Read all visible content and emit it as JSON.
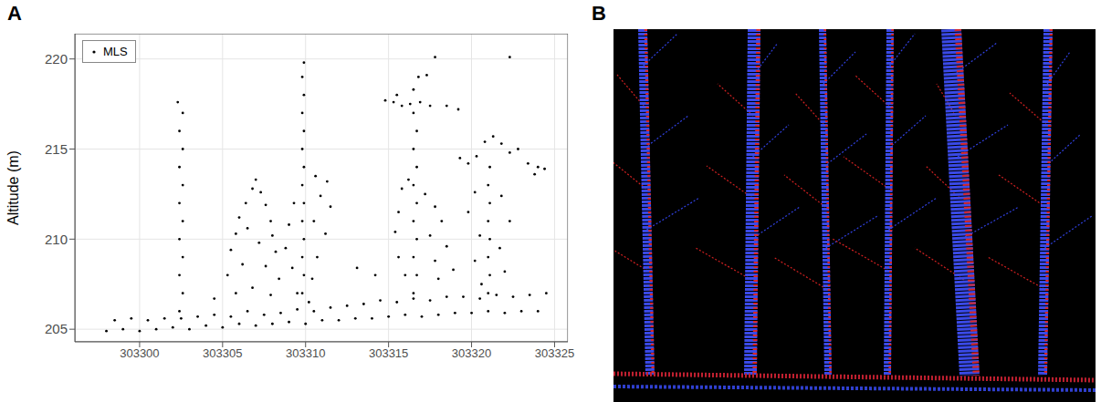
{
  "panel_labels": [
    "A",
    "B"
  ],
  "chart_data": {
    "type": "scatter",
    "y_label": "Altitude (m)",
    "xlim": [
      303296.1,
      303325.8
    ],
    "ylim": [
      204.3,
      221.4
    ],
    "xticks": [
      303300,
      303305,
      303310,
      303315,
      303320,
      303325
    ],
    "yticks": [
      205,
      210,
      215,
      220
    ],
    "grid": true,
    "legend": "top-left",
    "series": [
      {
        "name": "MLS",
        "color": "#000000",
        "marker": "dot",
        "x": [
          303298,
          303299,
          303300,
          303301,
          303302,
          303303,
          303304,
          303305,
          303306,
          303307,
          303308,
          303309,
          303310,
          303311,
          303312,
          303313,
          303314,
          303315,
          303316,
          303317,
          303318,
          303319,
          303320,
          303321,
          303322,
          303323,
          303324,
          303298.5,
          303299.5,
          303300.5,
          303301.5,
          303302.5,
          303303.5,
          303304.5,
          303305.5,
          303306.5,
          303307.5,
          303308.5,
          303309.5,
          303310.5,
          303311.5,
          303312.5,
          303313.5,
          303314.5,
          303315.5,
          303316.5,
          303317.5,
          303318.5,
          303319.5,
          303320.5,
          303321.5,
          303322.5,
          303323.5,
          303324.5,
          303302.4,
          303302.6,
          303302.4,
          303302.6,
          303302.4,
          303302.6,
          303302.4,
          303302.6,
          303302.4,
          303302.6,
          303302.4,
          303302.6,
          303302.3,
          303307.0,
          303306.8,
          303307.3,
          303306.4,
          303307.6,
          303306.0,
          303307.9,
          303305.8,
          303308.0,
          303306.5,
          303307.2,
          303305.5,
          303308.2,
          303306.2,
          303307.6,
          303305.3,
          303308.4,
          303306.8,
          303305.8,
          303307.9,
          303309.8,
          303309.9,
          303309.8,
          303309.9,
          303309.8,
          303309.9,
          303309.8,
          303309.9,
          303309.8,
          303309.9,
          303309.8,
          303309.9,
          303309.8,
          303309.9,
          303310.6,
          303311.3,
          303310.9,
          303311.5,
          303310.5,
          303311.2,
          303309.3,
          303309.0,
          303308.8,
          303310.7,
          303309.2,
          303310.4,
          303309.5,
          303310.2,
          303316.5,
          303316.7,
          303316.5,
          303316.7,
          303316.5,
          303316.7,
          303316.5,
          303316.7,
          303316.5,
          303316.7,
          303316.5,
          303314.8,
          303315.3,
          303315.8,
          303316.3,
          303316.9,
          303317.5,
          303315.5,
          303316.5,
          303316.8,
          303317.3,
          303317.8,
          303318.5,
          303319.2,
          303315.8,
          303316.2,
          303317.2,
          303317.8,
          303315.6,
          303318.2,
          303315.4,
          303317.5,
          303318.5,
          303315.6,
          303317.8,
          303316.0,
          303318.0,
          303318.9,
          303321.0,
          303321.1,
          303321.0,
          303321.1,
          303321.0,
          303321.1,
          303321.0,
          303321.1,
          303319.3,
          303319.8,
          303320.3,
          303320.8,
          303321.3,
          303321.8,
          303322.3,
          303322.8,
          303323.4,
          303324.0,
          303324.4,
          303320.2,
          303321.8,
          303319.8,
          303322.3,
          303320.5,
          303321.7,
          303320.2,
          303322.0,
          303320.6,
          303323.8,
          303322.3,
          303304.5,
          303313.1,
          303314.2
        ],
        "values": [
          204.9,
          205.0,
          204.9,
          205.0,
          205.1,
          205.0,
          205.2,
          205.1,
          205.3,
          205.2,
          205.3,
          205.4,
          205.3,
          205.5,
          205.5,
          205.6,
          205.6,
          205.7,
          205.8,
          205.7,
          205.8,
          205.9,
          205.9,
          206.0,
          205.9,
          206.0,
          206.0,
          205.5,
          205.6,
          205.5,
          205.6,
          205.6,
          205.7,
          205.8,
          205.7,
          206.0,
          205.8,
          205.9,
          206.1,
          206.0,
          206.2,
          206.3,
          206.4,
          206.6,
          206.5,
          206.7,
          206.6,
          206.8,
          206.8,
          206.7,
          206.9,
          206.8,
          206.9,
          207.0,
          206,
          207,
          208,
          209,
          210,
          211,
          212,
          213,
          214,
          215,
          216,
          217,
          217.6,
          213.3,
          212.8,
          212.6,
          212.0,
          211.9,
          211.2,
          211.0,
          210.3,
          210.2,
          210.6,
          209.8,
          209.4,
          209.3,
          208.6,
          208.5,
          208.0,
          207.8,
          207.3,
          207.0,
          206.9,
          207,
          208,
          209,
          210,
          211,
          212,
          213,
          214,
          215,
          216,
          217,
          218,
          219,
          219.8,
          213.5,
          213.2,
          212.4,
          211.8,
          211.0,
          210.3,
          212.0,
          210.8,
          209.5,
          209.0,
          208.4,
          207.8,
          207.0,
          206.5,
          207,
          208,
          209,
          210,
          211,
          212,
          213,
          214,
          215,
          216,
          217,
          217.7,
          217.6,
          217.4,
          217.5,
          217.6,
          217.4,
          218.0,
          218.3,
          219.0,
          219.1,
          220.1,
          217.4,
          217.2,
          212.8,
          213.3,
          212.5,
          211.8,
          211.5,
          211.0,
          210.4,
          210.2,
          209.6,
          209.0,
          208.8,
          208.0,
          207.8,
          208.3,
          207,
          208,
          209,
          210,
          211,
          212,
          213,
          214,
          214.5,
          214.2,
          214.6,
          215.4,
          215.7,
          215.3,
          214.8,
          215.0,
          214.2,
          214.0,
          213.9,
          212.6,
          212.4,
          211.5,
          211.0,
          210.2,
          209.5,
          208.8,
          208.2,
          207.5,
          213.6,
          220.1,
          206.7,
          208.4,
          208.0
        ]
      }
    ]
  }
}
